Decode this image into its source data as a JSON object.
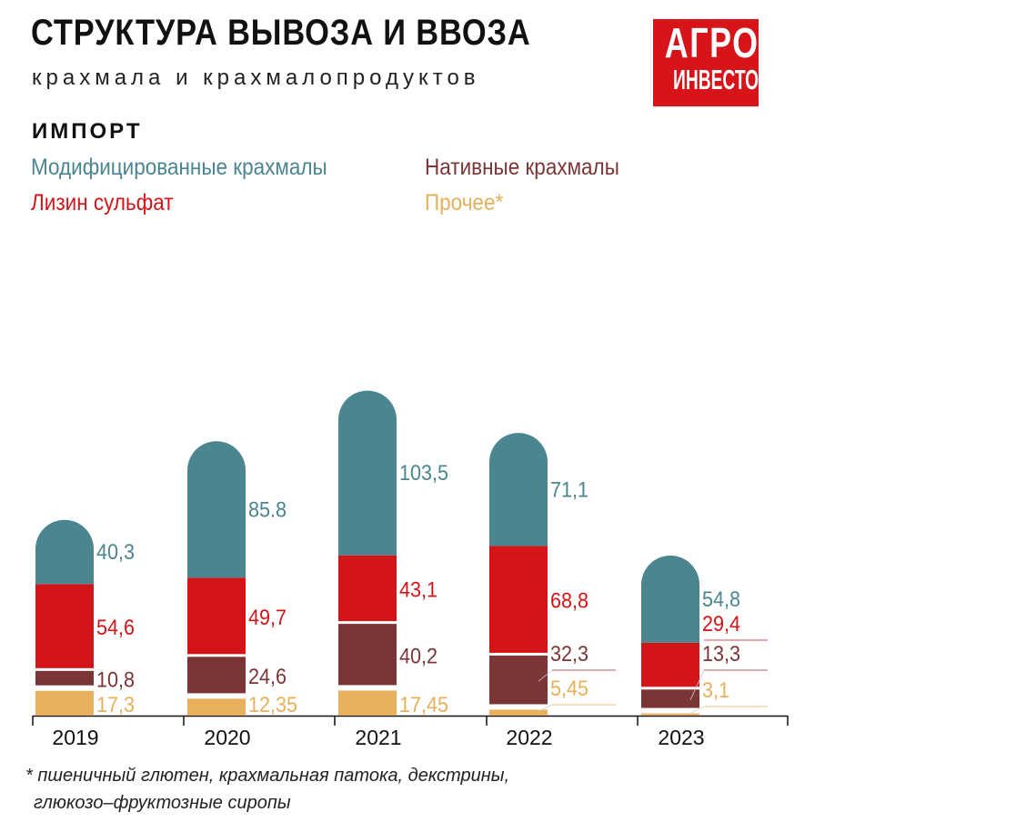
{
  "header": {
    "title": "СТРУКТУРА ВЫВОЗА И ВВОЗА",
    "subtitle": "крахмала и крахмалопродуктов",
    "logo_line1": "АГРО",
    "logo_line2": "ИНВЕСТОР",
    "section": "ИМПОРТ"
  },
  "colors": {
    "modified": "#4a8590",
    "lysine": "#d31519",
    "native": "#7b3537",
    "other": "#e8b05c"
  },
  "chart_data": {
    "type": "bar",
    "stacked": true,
    "categories": [
      "2019",
      "2020",
      "2021",
      "2022",
      "2023"
    ],
    "series": [
      {
        "name": "Прочее*",
        "values": [
          "17,3",
          "12,35",
          "17,45",
          "5,45",
          "3,1"
        ]
      },
      {
        "name": "Нативные крахмалы",
        "values": [
          "10,8",
          "24,6",
          "40,2",
          "32,3",
          "13,3"
        ]
      },
      {
        "name": "Лизин сульфат",
        "values": [
          "54,6",
          "49,7",
          "43,1",
          "68,8",
          "29,4"
        ]
      },
      {
        "name": "Модифицированные крахмалы",
        "values": [
          "40,3",
          "85.8",
          "103,5",
          "71,1",
          "54,8"
        ]
      }
    ],
    "legend": [
      "Модифицированные крахмалы",
      "Нативные крахмалы",
      "Лизин сульфат",
      "Прочее*"
    ],
    "legend_placement": "top",
    "grid": false
  },
  "footnote": {
    "line1": "* пшеничный глютен, крахмальная патока, декстрины,",
    "line2": "глюкозо–фруктозные сиропы"
  }
}
